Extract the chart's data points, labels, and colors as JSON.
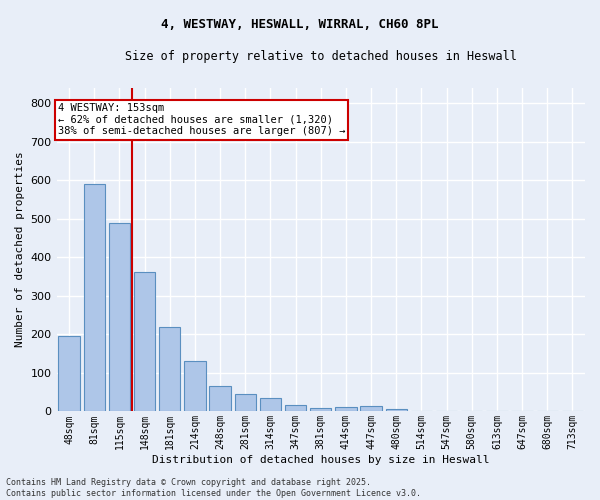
{
  "title_line1": "4, WESTWAY, HESWALL, WIRRAL, CH60 8PL",
  "title_line2": "Size of property relative to detached houses in Heswall",
  "xlabel": "Distribution of detached houses by size in Heswall",
  "ylabel": "Number of detached properties",
  "categories": [
    "48sqm",
    "81sqm",
    "115sqm",
    "148sqm",
    "181sqm",
    "214sqm",
    "248sqm",
    "281sqm",
    "314sqm",
    "347sqm",
    "381sqm",
    "414sqm",
    "447sqm",
    "480sqm",
    "514sqm",
    "547sqm",
    "580sqm",
    "613sqm",
    "647sqm",
    "680sqm",
    "713sqm"
  ],
  "values": [
    196,
    590,
    488,
    362,
    218,
    132,
    65,
    46,
    35,
    17,
    10,
    11,
    13,
    7,
    0,
    0,
    0,
    0,
    0,
    0,
    0
  ],
  "bar_color": "#aec6e8",
  "bar_edge_color": "#5a8fc0",
  "vline_index": 3,
  "vline_color": "#cc0000",
  "annotation_text": "4 WESTWAY: 153sqm\n← 62% of detached houses are smaller (1,320)\n38% of semi-detached houses are larger (807) →",
  "annotation_box_color": "#ffffff",
  "annotation_box_edge": "#cc0000",
  "ylim": [
    0,
    840
  ],
  "yticks": [
    0,
    100,
    200,
    300,
    400,
    500,
    600,
    700,
    800
  ],
  "background_color": "#e8eef8",
  "grid_color": "#ffffff",
  "footer": "Contains HM Land Registry data © Crown copyright and database right 2025.\nContains public sector information licensed under the Open Government Licence v3.0."
}
